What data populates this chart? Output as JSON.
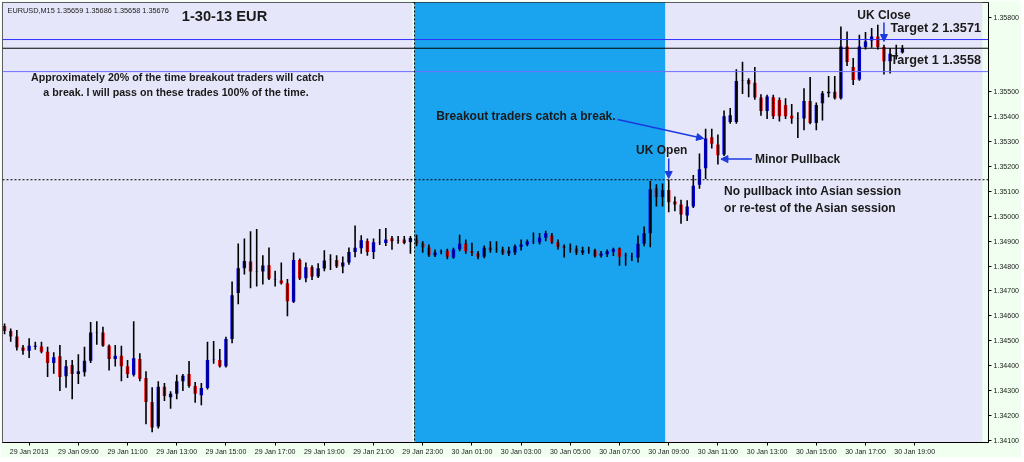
{
  "chart_data": {
    "type": "candlestick",
    "title": "1-30-13 EUR",
    "subtitle": "EURUSD,M15  1.35659 1.35686 1.35658 1.35676",
    "x": [
      "2013-01-29T06:00",
      "2013-01-29T06:15",
      "2013-01-29T06:30",
      "2013-01-29T06:45",
      "2013-01-29T07:00",
      "2013-01-29T07:15",
      "2013-01-29T07:30",
      "2013-01-29T07:45",
      "2013-01-29T08:00",
      "2013-01-29T08:15",
      "2013-01-29T08:30",
      "2013-01-29T08:45",
      "2013-01-29T09:00",
      "2013-01-29T09:15",
      "2013-01-29T09:30",
      "2013-01-29T09:45",
      "2013-01-29T10:00",
      "2013-01-29T10:15",
      "2013-01-29T10:30",
      "2013-01-29T10:45",
      "2013-01-29T11:00",
      "2013-01-29T11:15",
      "2013-01-29T11:30",
      "2013-01-29T11:45",
      "2013-01-29T12:00",
      "2013-01-29T12:15",
      "2013-01-29T12:30",
      "2013-01-29T12:45",
      "2013-01-29T13:00",
      "2013-01-29T13:15",
      "2013-01-29T13:30",
      "2013-01-29T13:45",
      "2013-01-29T14:00",
      "2013-01-29T14:15",
      "2013-01-29T14:30",
      "2013-01-29T14:45",
      "2013-01-29T15:00",
      "2013-01-29T15:15",
      "2013-01-29T15:30",
      "2013-01-29T15:45",
      "2013-01-29T16:00",
      "2013-01-29T16:15",
      "2013-01-29T16:30",
      "2013-01-29T16:45",
      "2013-01-29T17:00",
      "2013-01-29T17:15",
      "2013-01-29T17:30",
      "2013-01-29T17:45",
      "2013-01-29T18:00",
      "2013-01-29T18:15",
      "2013-01-29T18:30",
      "2013-01-29T18:45",
      "2013-01-29T19:00",
      "2013-01-29T19:15",
      "2013-01-29T19:30",
      "2013-01-29T19:45",
      "2013-01-29T20:00",
      "2013-01-29T20:15",
      "2013-01-29T20:30",
      "2013-01-29T20:45",
      "2013-01-29T21:00",
      "2013-01-29T21:15",
      "2013-01-29T21:30",
      "2013-01-29T21:45",
      "2013-01-29T22:00",
      "2013-01-29T22:15",
      "2013-01-29T22:30",
      "2013-01-29T22:45",
      "2013-01-29T23:00",
      "2013-01-29T23:15",
      "2013-01-29T23:30",
      "2013-01-29T23:45",
      "2013-01-30T00:00",
      "2013-01-30T00:15",
      "2013-01-30T00:30",
      "2013-01-30T00:45",
      "2013-01-30T01:00",
      "2013-01-30T01:15",
      "2013-01-30T01:30",
      "2013-01-30T01:45",
      "2013-01-30T02:00",
      "2013-01-30T02:15",
      "2013-01-30T02:30",
      "2013-01-30T02:45",
      "2013-01-30T03:00",
      "2013-01-30T03:15",
      "2013-01-30T03:30",
      "2013-01-30T03:45",
      "2013-01-30T04:00",
      "2013-01-30T04:15",
      "2013-01-30T04:30",
      "2013-01-30T04:45",
      "2013-01-30T05:00",
      "2013-01-30T05:15",
      "2013-01-30T05:30",
      "2013-01-30T05:45",
      "2013-01-30T06:00",
      "2013-01-30T06:15",
      "2013-01-30T06:30",
      "2013-01-30T06:45",
      "2013-01-30T07:00",
      "2013-01-30T07:15",
      "2013-01-30T07:30",
      "2013-01-30T07:45",
      "2013-01-30T08:00",
      "2013-01-30T08:15",
      "2013-01-30T08:30",
      "2013-01-30T08:45",
      "2013-01-30T09:00",
      "2013-01-30T09:15",
      "2013-01-30T09:30",
      "2013-01-30T09:45",
      "2013-01-30T10:00",
      "2013-01-30T10:15",
      "2013-01-30T10:30",
      "2013-01-30T10:45",
      "2013-01-30T11:00",
      "2013-01-30T11:15",
      "2013-01-30T11:30",
      "2013-01-30T11:45",
      "2013-01-30T12:00",
      "2013-01-30T12:15",
      "2013-01-30T12:30",
      "2013-01-30T12:45",
      "2013-01-30T13:00",
      "2013-01-30T13:15",
      "2013-01-30T13:30",
      "2013-01-30T13:45",
      "2013-01-30T14:00",
      "2013-01-30T14:15",
      "2013-01-30T14:30",
      "2013-01-30T14:45",
      "2013-01-30T15:00",
      "2013-01-30T15:15",
      "2013-01-30T15:30",
      "2013-01-30T15:45",
      "2013-01-30T16:00",
      "2013-01-30T16:15",
      "2013-01-30T16:30",
      "2013-01-30T16:45",
      "2013-01-30T17:00",
      "2013-01-30T17:15",
      "2013-01-30T17:30",
      "2013-01-30T17:45",
      "2013-01-30T18:00",
      "2013-01-30T18:15",
      "2013-01-30T18:30"
    ],
    "ohlc": [
      [
        1.34559,
        1.34565,
        1.34529,
        1.34539
      ],
      [
        1.34539,
        1.34545,
        1.34499,
        1.34516
      ],
      [
        1.34516,
        1.34539,
        1.34463,
        1.34472
      ],
      [
        1.34472,
        1.34479,
        1.34446,
        1.34459
      ],
      [
        1.34459,
        1.34506,
        1.34433,
        1.34479
      ],
      [
        1.34475,
        1.34492,
        1.34466,
        1.34479
      ],
      [
        1.34476,
        1.34492,
        1.34452,
        1.34455
      ],
      [
        1.34455,
        1.34472,
        1.34357,
        1.3441
      ],
      [
        1.3441,
        1.3445,
        1.3437,
        1.34433
      ],
      [
        1.34437,
        1.34479,
        1.343,
        1.34353
      ],
      [
        1.34357,
        1.34419,
        1.34313,
        1.34397
      ],
      [
        1.34402,
        1.34419,
        1.34267,
        1.34366
      ],
      [
        1.34366,
        1.34442,
        1.34329,
        1.34377
      ],
      [
        1.34373,
        1.34472,
        1.34359,
        1.34419
      ],
      [
        1.34419,
        1.34572,
        1.34413,
        1.34532
      ],
      [
        1.34531,
        1.34575,
        1.34486,
        1.34532
      ],
      [
        1.34532,
        1.34552,
        1.34478,
        1.34479
      ],
      [
        1.34479,
        1.34481,
        1.34383,
        1.34426
      ],
      [
        1.34426,
        1.34479,
        1.34399,
        1.34439
      ],
      [
        1.34439,
        1.34476,
        1.3434,
        1.34397
      ],
      [
        1.34397,
        1.34419,
        1.34353,
        1.34366
      ],
      [
        1.34363,
        1.34575,
        1.34359,
        1.34429
      ],
      [
        1.34426,
        1.34446,
        1.3434,
        1.34346
      ],
      [
        1.34349,
        1.34373,
        1.34167,
        1.34253
      ],
      [
        1.34253,
        1.34309,
        1.34134,
        1.3415
      ],
      [
        1.34154,
        1.34333,
        1.3415,
        1.34314
      ],
      [
        1.34314,
        1.34326,
        1.3426,
        1.34277
      ],
      [
        1.34272,
        1.34293,
        1.34229,
        1.34286
      ],
      [
        1.34286,
        1.34359,
        1.34267,
        1.34336
      ],
      [
        1.34336,
        1.34362,
        1.343,
        1.34359
      ],
      [
        1.34366,
        1.34415,
        1.34313,
        1.34317
      ],
      [
        1.34317,
        1.3433,
        1.34253,
        1.34286
      ],
      [
        1.3428,
        1.34326,
        1.34243,
        1.34309
      ],
      [
        1.34309,
        1.34492,
        1.34306,
        1.34422
      ],
      [
        1.34422,
        1.34495,
        1.3441,
        1.34423
      ],
      [
        1.34422,
        1.34463,
        1.34395,
        1.34397
      ],
      [
        1.34397,
        1.34512,
        1.34395,
        1.34506
      ],
      [
        1.34506,
        1.34734,
        1.34492,
        1.34682
      ],
      [
        1.34691,
        1.34887,
        1.34649,
        1.34791
      ],
      [
        1.34791,
        1.34907,
        1.34769,
        1.3482
      ],
      [
        1.34818,
        1.34937,
        1.34714,
        1.34778
      ],
      [
        1.34778,
        1.34946,
        1.34721,
        1.34779
      ],
      [
        1.34778,
        1.3484,
        1.34729,
        1.34802
      ],
      [
        1.34803,
        1.34871,
        1.34747,
        1.34749
      ],
      [
        1.34745,
        1.34778,
        1.34721,
        1.34746
      ],
      [
        1.34742,
        1.34811,
        1.34729,
        1.34731
      ],
      [
        1.34731,
        1.34745,
        1.34601,
        1.34658
      ],
      [
        1.34656,
        1.34851,
        1.34654,
        1.34824
      ],
      [
        1.34824,
        1.34827,
        1.34747,
        1.3475
      ],
      [
        1.34751,
        1.34811,
        1.34738,
        1.34795
      ],
      [
        1.34795,
        1.348,
        1.34747,
        1.34758
      ],
      [
        1.34758,
        1.34808,
        1.34755,
        1.34791
      ],
      [
        1.3479,
        1.3486,
        1.34782,
        1.34822
      ],
      [
        1.34824,
        1.34844,
        1.34787,
        1.34825
      ],
      [
        1.34824,
        1.3484,
        1.34795,
        1.34798
      ],
      [
        1.34798,
        1.34835,
        1.34774,
        1.34814
      ],
      [
        1.34814,
        1.34871,
        1.34808,
        1.34856
      ],
      [
        1.34856,
        1.3496,
        1.34838,
        1.34873
      ],
      [
        1.34871,
        1.3492,
        1.34853,
        1.34904
      ],
      [
        1.34901,
        1.34907,
        1.34844,
        1.34856
      ],
      [
        1.34856,
        1.34907,
        1.34831,
        1.34896
      ],
      [
        1.34895,
        1.34946,
        1.34888,
        1.34896
      ],
      [
        1.34893,
        1.3495,
        1.34884,
        1.34907
      ],
      [
        1.34912,
        1.34917,
        1.34869,
        1.349
      ],
      [
        1.34903,
        1.34917,
        1.34893,
        1.34904
      ],
      [
        1.34907,
        1.34917,
        1.34891,
        1.34893
      ],
      [
        1.34897,
        1.34917,
        1.34853,
        1.34913
      ],
      [
        1.34907,
        1.34923,
        1.34883,
        1.3489
      ],
      [
        1.34892,
        1.34896,
        1.34857,
        1.34874
      ],
      [
        1.34874,
        1.34883,
        1.34839,
        1.34843
      ],
      [
        1.34843,
        1.34863,
        1.34839,
        1.34854
      ],
      [
        1.34856,
        1.34863,
        1.3485,
        1.34857
      ],
      [
        1.34861,
        1.34866,
        1.3483,
        1.34837
      ],
      [
        1.34834,
        1.3487,
        1.34832,
        1.34866
      ],
      [
        1.34867,
        1.34923,
        1.34863,
        1.3489
      ],
      [
        1.3489,
        1.34903,
        1.34853,
        1.34859
      ],
      [
        1.34859,
        1.3489,
        1.34843,
        1.34853
      ],
      [
        1.3485,
        1.34857,
        1.3483,
        1.34837
      ],
      [
        1.34837,
        1.34879,
        1.34834,
        1.34873
      ],
      [
        1.34874,
        1.34896,
        1.34857,
        1.34863
      ],
      [
        1.34865,
        1.34896,
        1.34857,
        1.34866
      ],
      [
        1.34866,
        1.34874,
        1.34847,
        1.3485
      ],
      [
        1.3485,
        1.34874,
        1.34843,
        1.34861
      ],
      [
        1.34854,
        1.34883,
        1.34847,
        1.34879
      ],
      [
        1.34877,
        1.34903,
        1.34866,
        1.34887
      ],
      [
        1.34887,
        1.34903,
        1.34883,
        1.34899
      ],
      [
        1.34897,
        1.34932,
        1.34892,
        1.34898
      ],
      [
        1.34896,
        1.3493,
        1.3489,
        1.34914
      ],
      [
        1.34914,
        1.34939,
        1.34903,
        1.34932
      ],
      [
        1.34923,
        1.3493,
        1.34892,
        1.34896
      ],
      [
        1.34896,
        1.34903,
        1.3487,
        1.34877
      ],
      [
        1.34879,
        1.34883,
        1.34837,
        1.34873
      ],
      [
        1.34869,
        1.34887,
        1.34857,
        1.3487
      ],
      [
        1.3487,
        1.34879,
        1.34847,
        1.34853
      ],
      [
        1.34853,
        1.34874,
        1.34847,
        1.34863
      ],
      [
        1.34862,
        1.34874,
        1.34853,
        1.34863
      ],
      [
        1.34863,
        1.34866,
        1.34837,
        1.34839
      ],
      [
        1.34841,
        1.34857,
        1.34837,
        1.3485
      ],
      [
        1.34847,
        1.34863,
        1.34839,
        1.34859
      ],
      [
        1.34857,
        1.3487,
        1.34843,
        1.34867
      ],
      [
        1.3487,
        1.34871,
        1.34804,
        1.34837
      ],
      [
        1.34842,
        1.3485,
        1.34804,
        1.34843
      ],
      [
        1.34839,
        1.3485,
        1.34823,
        1.3484
      ],
      [
        1.34834,
        1.34919,
        1.34817,
        1.3489
      ],
      [
        1.3489,
        1.34956,
        1.34883,
        1.34932
      ],
      [
        1.34932,
        1.3514,
        1.34879,
        1.35109
      ],
      [
        1.35113,
        1.35126,
        1.35043,
        1.35078
      ],
      [
        1.35078,
        1.35129,
        1.35043,
        1.35105
      ],
      [
        1.35106,
        1.35145,
        1.35019,
        1.35056
      ],
      [
        1.35059,
        1.35076,
        1.35023,
        1.35047
      ],
      [
        1.35047,
        1.35063,
        1.34973,
        1.35007
      ],
      [
        1.35003,
        1.35061,
        1.34984,
        1.35039
      ],
      [
        1.35039,
        1.35163,
        1.35037,
        1.35123
      ],
      [
        1.35127,
        1.35249,
        1.35114,
        1.35189
      ],
      [
        1.35193,
        1.35349,
        1.35153,
        1.35313
      ],
      [
        1.35318,
        1.35349,
        1.35276,
        1.35292
      ],
      [
        1.35289,
        1.35326,
        1.35212,
        1.35246
      ],
      [
        1.35249,
        1.35422,
        1.35246,
        1.35402
      ],
      [
        1.35379,
        1.35432,
        1.35375,
        1.35406
      ],
      [
        1.35379,
        1.35588,
        1.35375,
        1.35544
      ],
      [
        1.35544,
        1.35618,
        1.35495,
        1.35545
      ],
      [
        1.35548,
        1.35552,
        1.35482,
        1.35531
      ],
      [
        1.35537,
        1.35597,
        1.35472,
        1.35478
      ],
      [
        1.35478,
        1.35488,
        1.35408,
        1.35424
      ],
      [
        1.35424,
        1.35486,
        1.35395,
        1.35482
      ],
      [
        1.35479,
        1.35486,
        1.35395,
        1.35402
      ],
      [
        1.35468,
        1.35475,
        1.35385,
        1.35402
      ],
      [
        1.35448,
        1.35472,
        1.35395,
        1.35402
      ],
      [
        1.35404,
        1.35448,
        1.35375,
        1.35393
      ],
      [
        1.35391,
        1.35415,
        1.35318,
        1.35392
      ],
      [
        1.35393,
        1.35512,
        1.35349,
        1.35464
      ],
      [
        1.35464,
        1.35557,
        1.35373,
        1.35375
      ],
      [
        1.35375,
        1.35455,
        1.35349,
        1.35448
      ],
      [
        1.35455,
        1.35501,
        1.35389,
        1.35495
      ],
      [
        1.35495,
        1.35561,
        1.35482,
        1.35501
      ],
      [
        1.35501,
        1.35561,
        1.35473,
        1.35475
      ],
      [
        1.35475,
        1.3576,
        1.35473,
        1.35683
      ],
      [
        1.35683,
        1.3574,
        1.35608,
        1.35621
      ],
      [
        1.35601,
        1.35634,
        1.35531,
        1.35548
      ],
      [
        1.3555,
        1.35727,
        1.35548,
        1.35683
      ],
      [
        1.35681,
        1.35738,
        1.35674,
        1.35703
      ],
      [
        1.35707,
        1.35754,
        1.35681,
        1.35723
      ],
      [
        1.35723,
        1.35767,
        1.35674,
        1.35681
      ],
      [
        1.35681,
        1.35687,
        1.35574,
        1.35624
      ],
      [
        1.35624,
        1.35674,
        1.35578,
        1.35654
      ],
      [
        1.35653,
        1.35687,
        1.35634,
        1.35654
      ],
      [
        1.35659,
        1.35686,
        1.35658,
        1.35676
      ]
    ],
    "xlim": [
      "2013-01-29T05:55",
      "2013-01-30T22:00"
    ],
    "xticks": [
      {
        "value": "2013-01-29T07:00",
        "label": "29 Jan 2013"
      },
      {
        "value": "2013-01-29T09:00",
        "label": "29 Jan 09:00"
      },
      {
        "value": "2013-01-29T11:00",
        "label": "29 Jan 11:00"
      },
      {
        "value": "2013-01-29T13:00",
        "label": "29 Jan 13:00"
      },
      {
        "value": "2013-01-29T15:00",
        "label": "29 Jan 15:00"
      },
      {
        "value": "2013-01-29T17:00",
        "label": "29 Jan 17:00"
      },
      {
        "value": "2013-01-29T19:00",
        "label": "29 Jan 19:00"
      },
      {
        "value": "2013-01-29T21:00",
        "label": "29 Jan 21:00"
      },
      {
        "value": "2013-01-29T23:00",
        "label": "29 Jan 23:00"
      },
      {
        "value": "2013-01-30T01:00",
        "label": "30 Jan 01:00"
      },
      {
        "value": "2013-01-30T03:00",
        "label": "30 Jan 03:00"
      },
      {
        "value": "2013-01-30T05:00",
        "label": "30 Jan 05:00"
      },
      {
        "value": "2013-01-30T07:00",
        "label": "30 Jan 07:00"
      },
      {
        "value": "2013-01-30T09:00",
        "label": "30 Jan 09:00"
      },
      {
        "value": "2013-01-30T11:00",
        "label": "30 Jan 11:00"
      },
      {
        "value": "2013-01-30T13:00",
        "label": "30 Jan 13:00"
      },
      {
        "value": "2013-01-30T15:00",
        "label": "30 Jan 15:00"
      },
      {
        "value": "2013-01-30T17:00",
        "label": "30 Jan 17:00"
      },
      {
        "value": "2013-01-30T19:00",
        "label": "30 Jan 19:00"
      }
    ],
    "ylim": [
      1.3409,
      1.3586
    ],
    "yticks": [
      {
        "value": 1.341,
        "label": "1.34100"
      },
      {
        "value": 1.342,
        "label": "1.34200"
      },
      {
        "value": 1.343,
        "label": "1.34300"
      },
      {
        "value": 1.344,
        "label": "1.34400"
      },
      {
        "value": 1.345,
        "label": "1.34500"
      },
      {
        "value": 1.346,
        "label": "1.34600"
      },
      {
        "value": 1.347,
        "label": "1.34700"
      },
      {
        "value": 1.348,
        "label": "1.34800"
      },
      {
        "value": 1.349,
        "label": "1.34900"
      },
      {
        "value": 1.35,
        "label": "1.35000"
      },
      {
        "value": 1.351,
        "label": "1.35100"
      },
      {
        "value": 1.352,
        "label": "1.35200"
      },
      {
        "value": 1.353,
        "label": "1.35300"
      },
      {
        "value": 1.354,
        "label": "1.35400"
      },
      {
        "value": 1.355,
        "label": "1.35500"
      },
      {
        "value": 1.358,
        "label": "1.35800"
      }
    ],
    "bands": [
      {
        "axis": "x",
        "from": "2013-01-29T05:55",
        "to": "2013-01-29T22:35",
        "color": "#e6e6fa"
      },
      {
        "axis": "x",
        "from": "2013-01-29T22:40",
        "to": "2013-01-30T08:52",
        "color": "#1aa3ef"
      },
      {
        "axis": "x",
        "from": "2013-01-30T08:52",
        "to": "2013-01-30T21:45",
        "color": "#e6e6fa"
      }
    ],
    "ref_lines": [
      {
        "axis": "y",
        "value": 1.35711,
        "label": "Target 2  1.3571",
        "color": "#3030ff"
      },
      {
        "axis": "y",
        "value": 1.35676,
        "color": "#000000"
      },
      {
        "axis": "y",
        "value": 1.35582,
        "label": "Target 1  1.3558",
        "color": "#7070ff"
      },
      {
        "axis": "y",
        "value": 1.35147,
        "color": "#000000",
        "line_style": "dotted"
      },
      {
        "axis": "x",
        "value": "2013-01-29T22:40",
        "color": "#000000",
        "line_style": "dotted"
      }
    ],
    "annotations": [
      "Approximately 20% of the time breakout traders will catch\na break.  I will pass on these trades 100% of the time.",
      {
        "text": "Breakout traders catch a break.",
        "x": "2013-01-30T10:30",
        "y": 1.35313
      },
      {
        "text": "UK Open",
        "x": "2013-01-30T09:00",
        "y": 1.3514
      },
      {
        "text": "Minor Pullback",
        "x": "2013-01-30T11:00",
        "y": 1.3523
      },
      {
        "text": "No pullback into Asian session\nor re-test of the Asian session",
        "x": "2013-01-30T11:15",
        "y": 1.35147
      },
      {
        "text": "UK Close",
        "x": "2013-01-30T17:45",
        "y": 1.35687
      }
    ]
  }
}
